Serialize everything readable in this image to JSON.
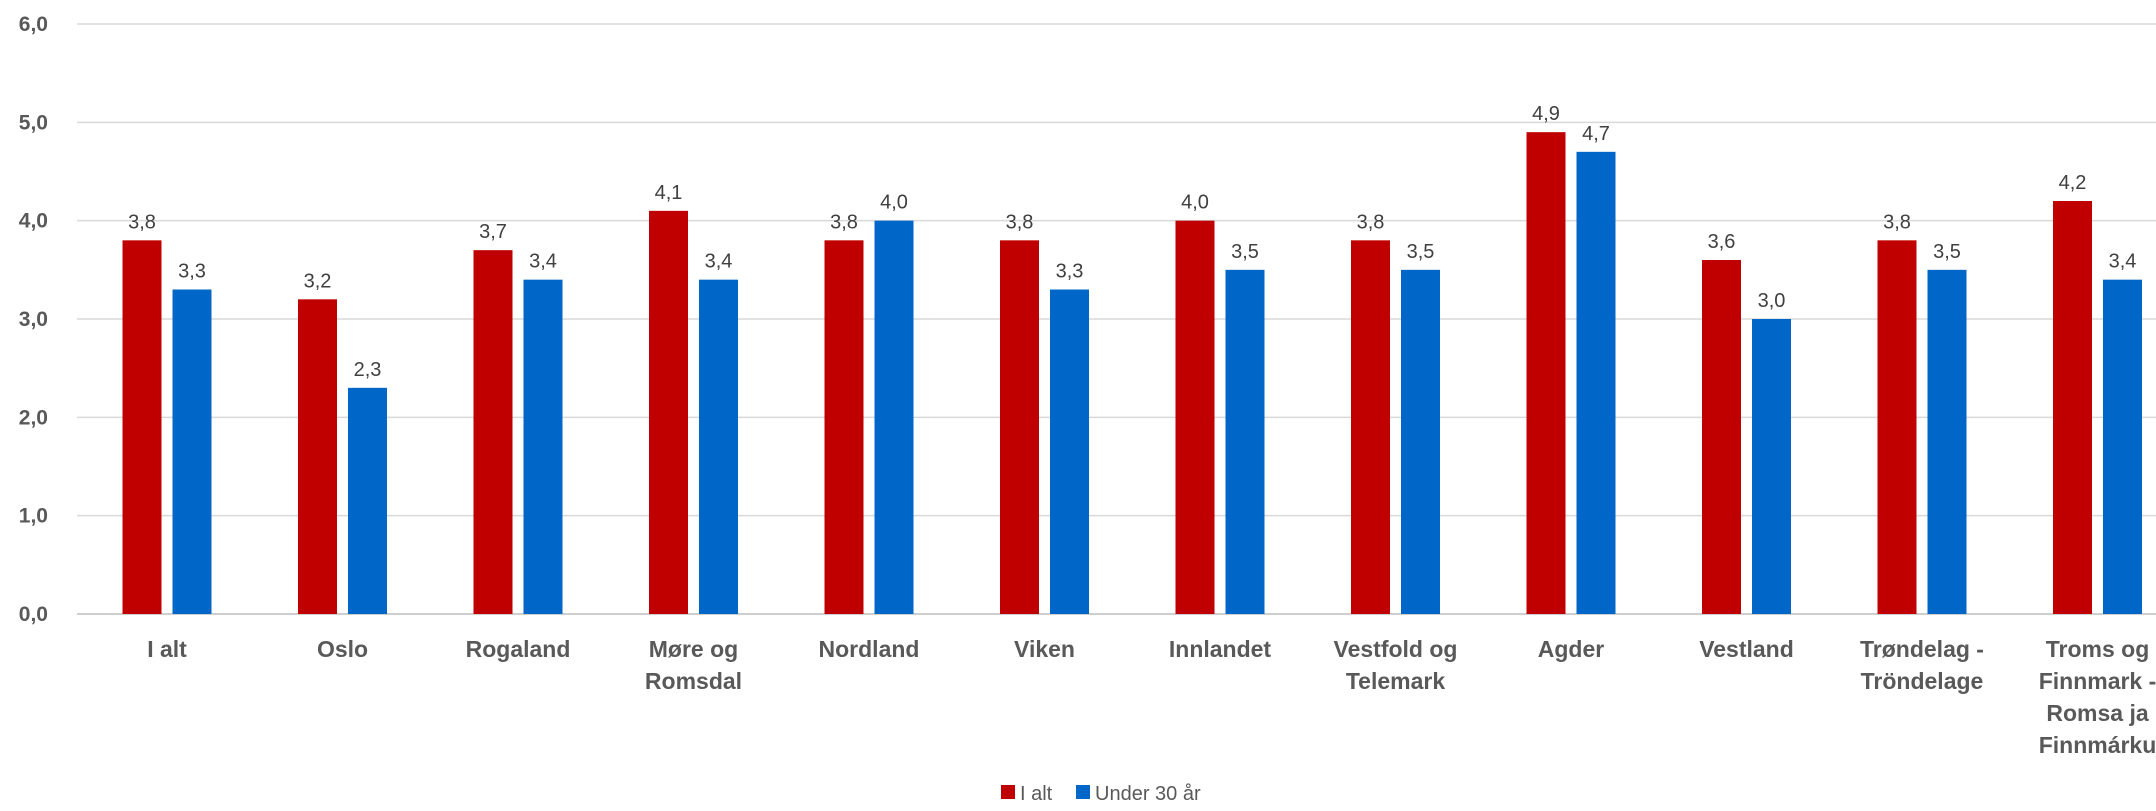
{
  "chart_data": {
    "type": "bar",
    "categories": [
      [
        "I alt"
      ],
      [
        "Oslo"
      ],
      [
        "Rogaland"
      ],
      [
        "Møre og",
        "Romsdal"
      ],
      [
        "Nordland"
      ],
      [
        "Viken"
      ],
      [
        "Innlandet"
      ],
      [
        "Vestfold og",
        "Telemark"
      ],
      [
        "Agder"
      ],
      [
        "Vestland"
      ],
      [
        "Trøndelag -",
        "Tröndelage"
      ],
      [
        "Troms og",
        "Finnmark -",
        "Romsa ja",
        "Finnmárku"
      ]
    ],
    "series": [
      {
        "name": "I alt",
        "color": "#c00000",
        "values": [
          3.8,
          3.2,
          3.7,
          4.1,
          3.8,
          3.8,
          4.0,
          3.8,
          4.9,
          3.6,
          3.8,
          4.2
        ],
        "labels": [
          "3,8",
          "3,2",
          "3,7",
          "4,1",
          "3,8",
          "3,8",
          "4,0",
          "3,8",
          "4,9",
          "3,6",
          "3,8",
          "4,2"
        ]
      },
      {
        "name": "Under 30 år",
        "color": "#0066c8",
        "values": [
          3.3,
          2.3,
          3.4,
          3.4,
          4.0,
          3.3,
          3.5,
          3.5,
          4.7,
          3.0,
          3.5,
          3.4
        ],
        "labels": [
          "3,3",
          "2,3",
          "3,4",
          "3,4",
          "4,0",
          "3,3",
          "3,5",
          "3,5",
          "4,7",
          "3,0",
          "3,5",
          "3,4"
        ]
      }
    ],
    "ylim": [
      0,
      6
    ],
    "yticks": [
      0,
      1,
      2,
      3,
      4,
      5,
      6
    ],
    "ytick_labels": [
      "0,0",
      "1,0",
      "2,0",
      "3,0",
      "4,0",
      "5,0",
      "6,0"
    ],
    "grid": true,
    "legend_position": "bottom",
    "title": "",
    "xlabel": "",
    "ylabel": ""
  }
}
